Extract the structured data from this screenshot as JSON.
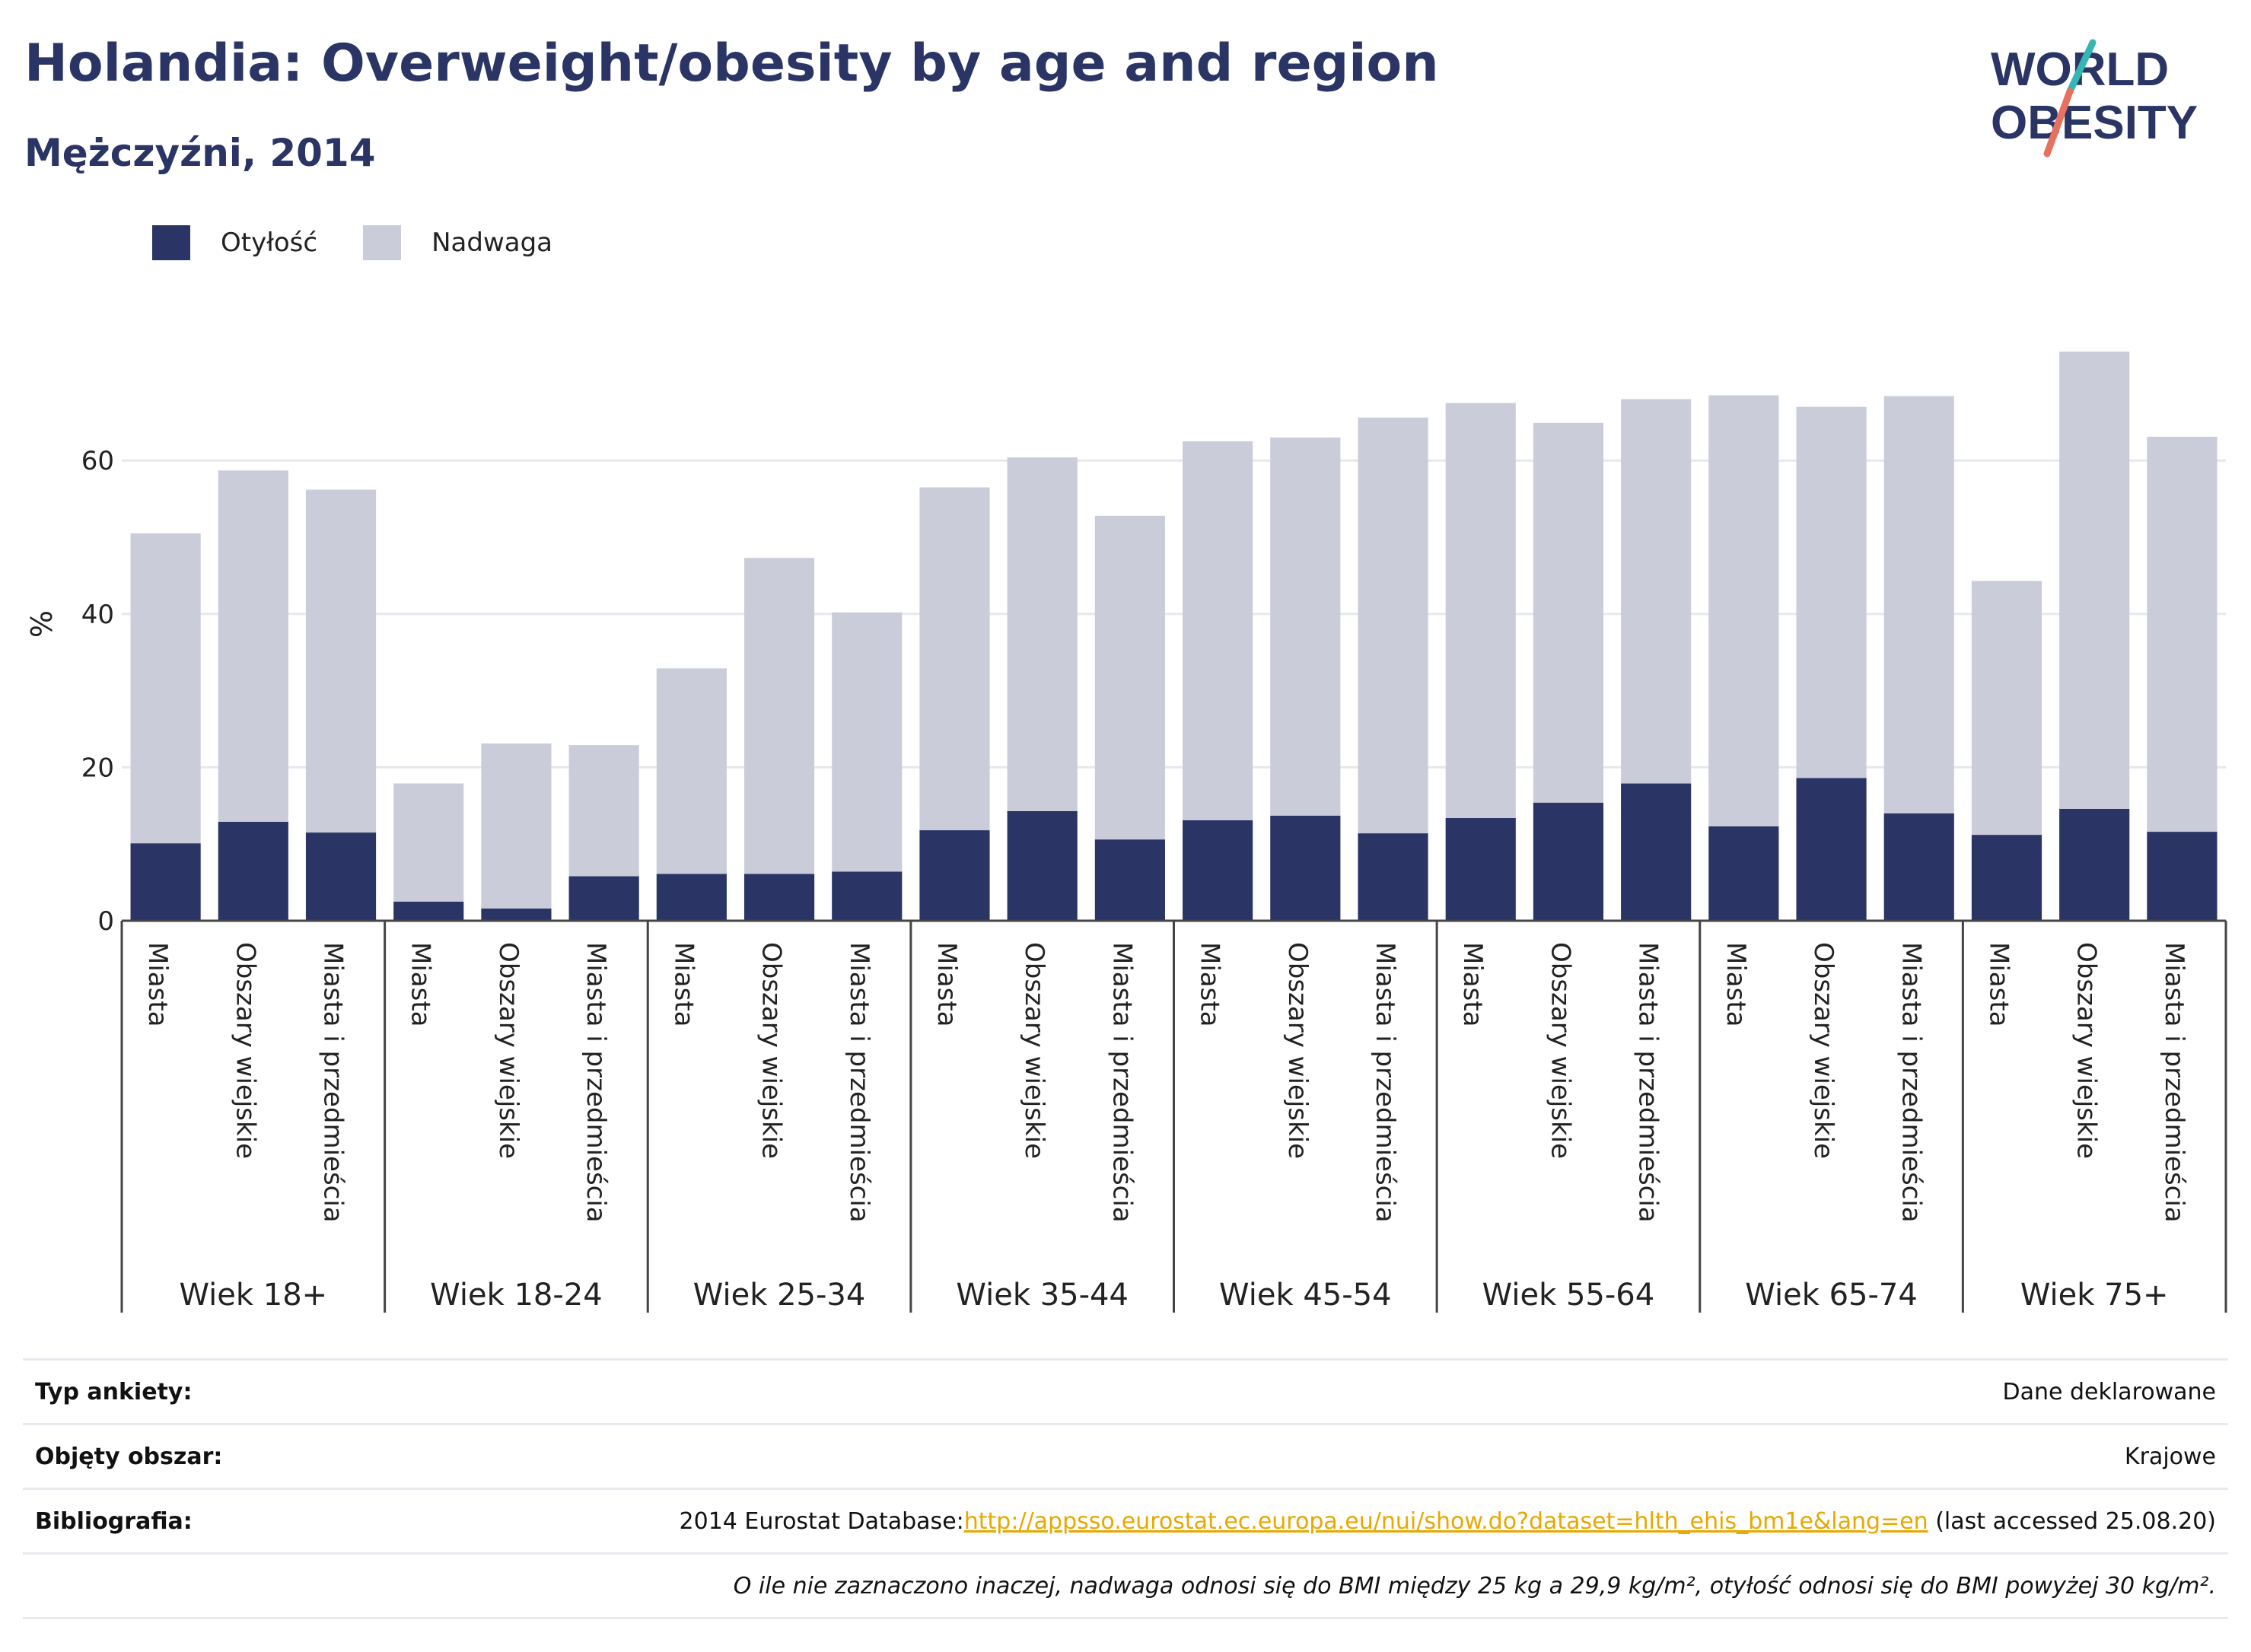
{
  "header": {
    "title": "Holandia: Overweight/obesity by age and region",
    "subtitle": "Mężczyźni, 2014"
  },
  "logo": {
    "line1": "WORLD",
    "line2": "OBESITY"
  },
  "legend": {
    "obesity": "Otyłość",
    "overweight": "Nadwaga"
  },
  "colors": {
    "obesity": "#2a3565",
    "overweight": "#cacdd9",
    "accent_teal": "#35b6b4",
    "accent_coral": "#e8705f",
    "link": "#e8a800"
  },
  "chart_data": {
    "type": "bar",
    "stacked": true,
    "ylabel": "%",
    "ylim": [
      0,
      78
    ],
    "yticks": [
      0,
      20,
      40,
      60
    ],
    "grid": true,
    "legend_position": "top-left",
    "groups": [
      "Wiek 18+",
      "Wiek 18-24",
      "Wiek 25-34",
      "Wiek 35-44",
      "Wiek 45-54",
      "Wiek 55-64",
      "Wiek 65-74",
      "Wiek 75+"
    ],
    "subcategories": [
      "Miasta",
      "Obszary wiejskie",
      "Miasta i przedmieścia"
    ],
    "series": [
      {
        "name": "Otyłość",
        "values": [
          10.1,
          12.9,
          11.5,
          2.5,
          1.6,
          5.8,
          6.1,
          6.1,
          6.4,
          11.8,
          14.3,
          10.6,
          13.1,
          13.7,
          11.4,
          13.4,
          15.4,
          17.9,
          12.3,
          18.6,
          14.0,
          11.2,
          14.6,
          11.6
        ]
      },
      {
        "name": "Nadwaga",
        "values": [
          40.4,
          45.8,
          44.7,
          15.4,
          21.5,
          17.1,
          26.8,
          41.2,
          33.8,
          44.7,
          46.1,
          42.2,
          49.4,
          49.3,
          54.2,
          54.1,
          49.5,
          50.1,
          56.2,
          48.4,
          54.4,
          33.1,
          59.6,
          51.5
        ]
      }
    ]
  },
  "meta": {
    "survey_type_label": "Typ ankiety:",
    "survey_type_value": "Dane deklarowane",
    "coverage_label": "Objęty obszar:",
    "coverage_value": "Krajowe",
    "bibliography_label": "Bibliografia:",
    "bibliography_prefix": "2014 Eurostat Database:",
    "bibliography_link": "http://appsso.eurostat.ec.europa.eu/nui/show.do?dataset=hlth_ehis_bm1e&lang=en",
    "bibliography_suffix": " (last accessed 25.08.20)",
    "note": "O ile nie zaznaczono inaczej, nadwaga odnosi się do BMI między 25 kg a 29,9 kg/m², otyłość odnosi się do BMI powyżej 30 kg/m²."
  }
}
